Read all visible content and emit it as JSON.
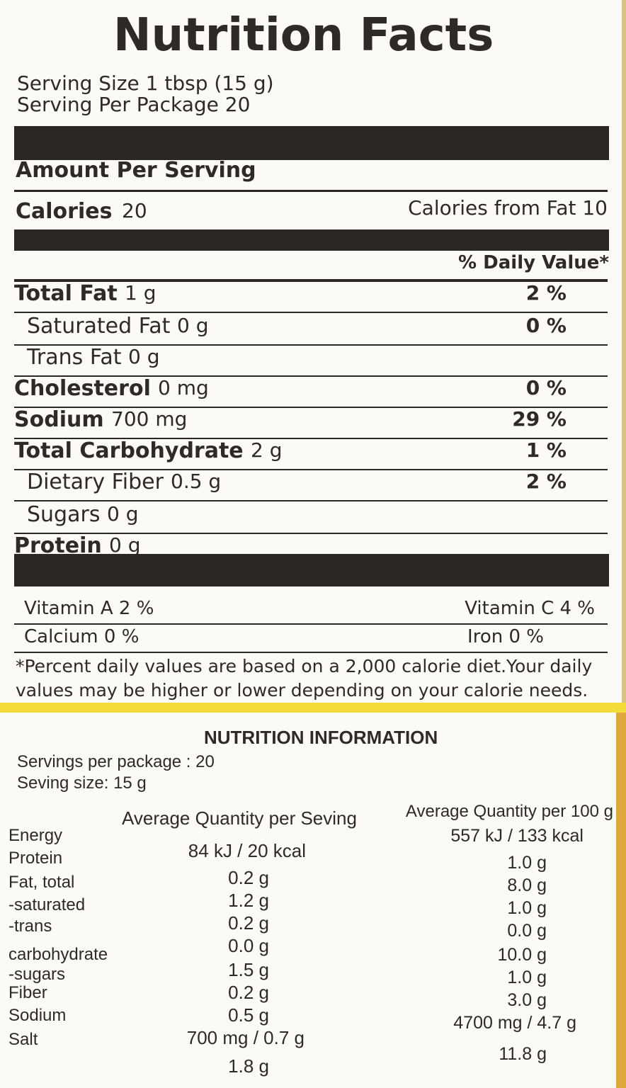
{
  "facts": {
    "title": "Nutrition Facts",
    "serving_size": "Serving Size 1 tbsp (15 g)",
    "servings_per_package": "Serving Per Package 20",
    "amount_per_serving": "Amount Per Serving",
    "calories": {
      "label": "Calories",
      "value": "20"
    },
    "calories_from_fat": "Calories from Fat 10",
    "daily_value_header": "% Daily Value*",
    "rows": [
      {
        "name": "Total Fat",
        "amount": "1 g",
        "dv": "2 %"
      },
      {
        "name": "Saturated Fat",
        "amount": "0 g",
        "dv": "0 %"
      },
      {
        "name": "Trans Fat",
        "amount": "0 g"
      },
      {
        "name": "Cholesterol",
        "amount": "0 mg",
        "dv": "0 %"
      },
      {
        "name": "Sodium",
        "amount": "700 mg",
        "dv": "29 %"
      },
      {
        "name": "Total Carbohydrate",
        "amount": "2 g",
        "dv": "1 %"
      },
      {
        "name": "Dietary Fiber",
        "amount": "0.5 g",
        "dv": "2 %"
      },
      {
        "name": "Sugars",
        "amount": "0 g"
      },
      {
        "name": "Protein",
        "amount": "0 g"
      }
    ],
    "vitamins": [
      [
        "Vitamin A 2 %",
        "Vitamin C 4 %"
      ],
      [
        "Calcium 0 %",
        "Iron 0 %"
      ]
    ],
    "footnote": [
      "*Percent daily values are based on a 2,000 calorie diet.Your daily",
      "values may be higher or lower depending on  your calorie needs."
    ]
  },
  "info": {
    "title": "NUTRITION INFORMATION",
    "servings_per_package": "Servings per package : 20",
    "serving_size": "Seving size: 15 g",
    "header_serving": "Average Quantity per Seving",
    "header_100g": "Average Quantity per 100 g",
    "labels": [
      "Energy",
      "Protein",
      "Fat, total",
      "-saturated",
      "-trans",
      "carbohydrate",
      "-sugars",
      "Fiber",
      "Sodium",
      "Salt"
    ],
    "per_serving": [
      "84 kJ / 20 kcal",
      "0.2 g",
      "1.2 g",
      "0.2 g",
      "0.0 g",
      "1.5 g",
      "0.2 g",
      "0.5 g",
      "700 mg / 0.7 g",
      "1.8 g"
    ],
    "per_100g": [
      "557 kJ / 133 kcal",
      "1.0 g",
      "8.0 g",
      "1.0 g",
      "0.0 g",
      "10.0 g",
      "1.0 g",
      "3.0 g",
      "4700 mg / 4.7 g",
      "11.8 g"
    ]
  }
}
